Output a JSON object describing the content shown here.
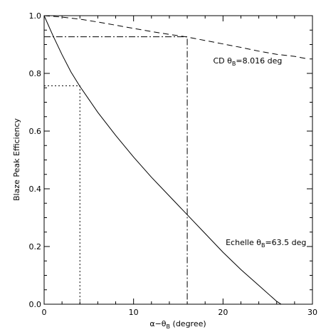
{
  "chart_data": {
    "type": "line",
    "xlabel_main": "α−θ",
    "xlabel_sub": "B",
    "xlabel_rest": " (degree)",
    "ylabel": "Blaze Peak Efficiency",
    "xlim": [
      0,
      30
    ],
    "ylim": [
      0,
      1.0
    ],
    "xticks": [
      0,
      10,
      20,
      30
    ],
    "xtick_labels": [
      "0",
      "10",
      "20",
      "30"
    ],
    "yticks": [
      0.0,
      0.2,
      0.4,
      0.6,
      0.8,
      1.0
    ],
    "ytick_labels": [
      "0.0",
      "0.2",
      "0.4",
      "0.6",
      "0.8",
      "1.0"
    ],
    "grid": false,
    "series": [
      {
        "name": "CD θB=8.016 deg",
        "style": "dashed",
        "x": [
          0,
          2,
          4,
          6,
          8,
          10,
          12,
          14,
          16,
          18,
          20,
          22,
          24,
          26,
          28,
          29.5
        ],
        "y": [
          1.0,
          0.995,
          0.988,
          0.978,
          0.967,
          0.956,
          0.945,
          0.935,
          0.926,
          0.914,
          0.902,
          0.89,
          0.877,
          0.866,
          0.859,
          0.85
        ]
      },
      {
        "name": "Echelle θB=63.5 deg",
        "style": "solid",
        "x": [
          0,
          1,
          2,
          3,
          4,
          5,
          6,
          8,
          10,
          12,
          14,
          16,
          18,
          20,
          22,
          24,
          26,
          26.5
        ],
        "y": [
          1.0,
          0.93,
          0.865,
          0.805,
          0.755,
          0.71,
          0.665,
          0.585,
          0.51,
          0.44,
          0.375,
          0.31,
          0.245,
          0.18,
          0.12,
          0.065,
          0.01,
          0.0
        ]
      }
    ],
    "guides": [
      {
        "style": "dotted",
        "x": 4,
        "y": 0.757
      },
      {
        "style": "dashdot",
        "x": 16,
        "y": 0.927
      }
    ],
    "annotations": [
      {
        "pre": "CD θ",
        "sub": "B",
        "post": "=8.016 deg",
        "x": 18.9,
        "y": 0.835
      },
      {
        "pre": "Echelle θ",
        "sub": "B",
        "post": "=63.5 deg",
        "x": 20.3,
        "y": 0.205
      }
    ]
  }
}
